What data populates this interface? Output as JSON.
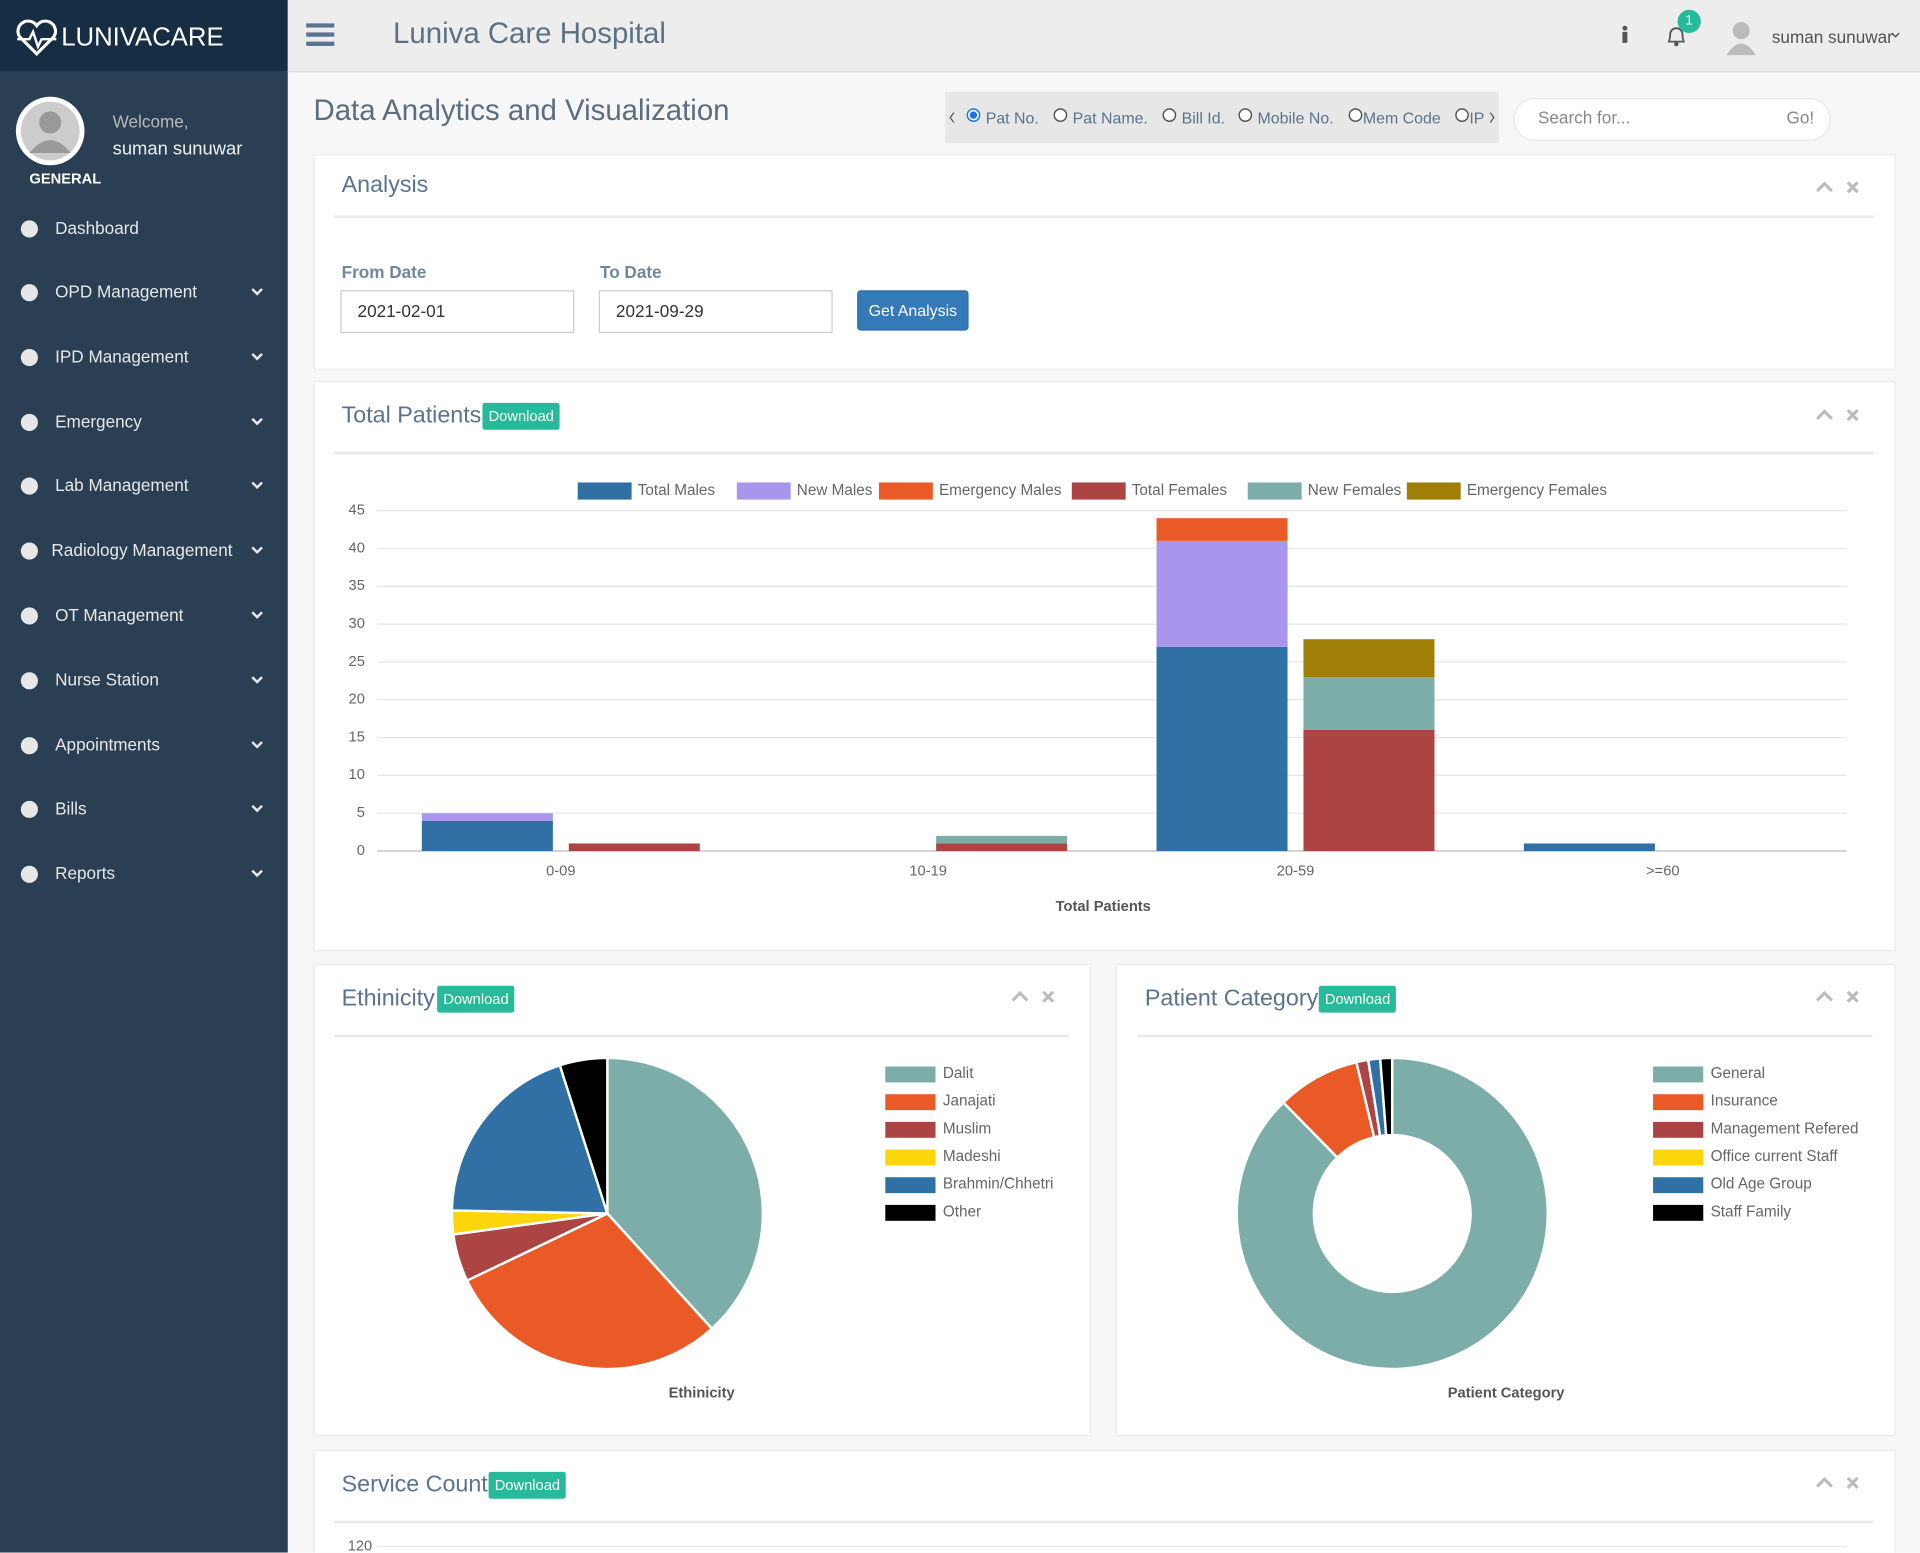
{
  "brand": "LUNIVACARE",
  "header": {
    "title": "Luniva Care Hospital",
    "notifications": 1,
    "user": "suman sunuwar"
  },
  "sidebar": {
    "welcome": "Welcome,",
    "user": "suman sunuwar",
    "role": "GENERAL",
    "menu": [
      "Dashboard",
      "OPD Management",
      "IPD Management",
      "Emergency",
      "Lab Management",
      "Radiology Management",
      "OT Management",
      "Nurse Station",
      "Appointments",
      "Bills",
      "Reports"
    ]
  },
  "page_title": "Data Analytics and Visualization",
  "search": {
    "options": [
      "Pat No.",
      "Pat Name.",
      "Bill Id.",
      "Mobile No.",
      "Mem Code",
      "IP"
    ],
    "placeholder": "Search for...",
    "button": "Go!"
  },
  "analysis": {
    "title": "Analysis",
    "from_label": "From Date",
    "from_value": "2021-02-01",
    "to_label": "To Date",
    "to_value": "2021-09-29",
    "button": "Get Analysis"
  },
  "download_label": "Download",
  "chart_data": [
    {
      "type": "bar",
      "stacked": true,
      "title": "Total Patients",
      "x_label": "Total Patients",
      "categories": [
        "0-09",
        "10-19",
        "20-59",
        ">=60"
      ],
      "ylim": [
        0,
        45
      ],
      "yticks": [
        0,
        5,
        10,
        15,
        20,
        25,
        30,
        35,
        40,
        45
      ],
      "grid": true,
      "legend": "top",
      "series": [
        {
          "name": "Total Males",
          "stack": "male",
          "color": "#3070a5",
          "values": [
            4,
            0,
            27,
            1
          ]
        },
        {
          "name": "New Males",
          "stack": "male",
          "color": "#a896ec",
          "values": [
            1,
            0,
            14,
            0
          ]
        },
        {
          "name": "Emergency Males",
          "stack": "male",
          "color": "#e95a26",
          "values": [
            0,
            0,
            3,
            0
          ]
        },
        {
          "name": "Total Females",
          "stack": "female",
          "color": "#ab4443",
          "values": [
            1,
            1,
            16,
            0
          ]
        },
        {
          "name": "New Females",
          "stack": "female",
          "color": "#7cada8",
          "values": [
            0,
            1,
            7,
            0
          ]
        },
        {
          "name": "Emergency Females",
          "stack": "female",
          "color": "#a07f08",
          "values": [
            0,
            0,
            5,
            0
          ]
        }
      ]
    },
    {
      "type": "pie",
      "title": "Ethinicity",
      "x_label": "Ethinicity",
      "legend": "right",
      "categories": [
        "Dalit",
        "Janajati",
        "Muslim",
        "Madeshi",
        "Brahmin/Chhetri",
        "Other"
      ],
      "values": [
        31,
        24,
        4,
        2,
        16,
        4
      ],
      "colors": [
        "#7cada8",
        "#e95a26",
        "#ab4443",
        "#fcd50a",
        "#3070a5",
        "#000000"
      ]
    },
    {
      "type": "doughnut",
      "title": "Patient Category",
      "x_label": "Patient Category",
      "legend": "right",
      "categories": [
        "General",
        "Insurance",
        "Management Refered",
        "Office current Staff",
        "Old Age Group",
        "Staff Family"
      ],
      "values": [
        71,
        7,
        1,
        0,
        1,
        1
      ],
      "colors": [
        "#7cada8",
        "#e95a26",
        "#ab4443",
        "#fcd50a",
        "#3070a5",
        "#000000"
      ]
    },
    {
      "type": "bar",
      "title": "Service Count",
      "yticks": [
        120
      ],
      "series": []
    }
  ]
}
